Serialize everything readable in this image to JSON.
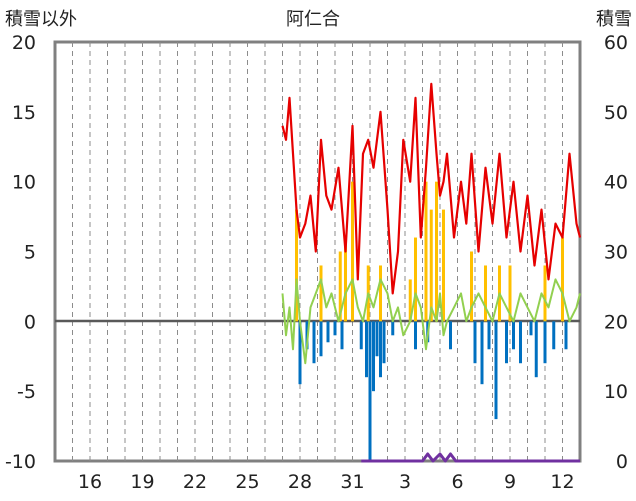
{
  "chart_data": {
    "type": "line",
    "title": "阿仁合",
    "left_axis_title": "積雪以外",
    "right_axis_title": "積雪",
    "left_ylim": [
      -10,
      20
    ],
    "left_ticks": [
      "20",
      "15",
      "10",
      "5",
      "0",
      "-5",
      "-10"
    ],
    "right_ylim": [
      0,
      60
    ],
    "right_ticks": [
      "60",
      "50",
      "40",
      "30",
      "20",
      "10",
      "0"
    ],
    "x_ticks": [
      "16",
      "19",
      "22",
      "25",
      "28",
      "31",
      "3",
      "6",
      "9",
      "12"
    ],
    "x_day_range": [
      14,
      44
    ],
    "grid": "dashed vertical daily lines",
    "colors": {
      "temperature": "#e60000",
      "daily_temp": "#92d050",
      "precipitation": "#ffc000",
      "negative": "#0070c0",
      "snow_depth": "#7030a0",
      "frame": "#808080"
    },
    "series": [
      {
        "key": "temperature",
        "x": [
          27.0,
          27.2,
          27.4,
          27.6,
          27.8,
          28.0,
          28.3,
          28.6,
          28.9,
          29.2,
          29.5,
          29.8,
          30.2,
          30.6,
          31.0,
          31.3,
          31.6,
          31.9,
          32.2,
          32.6,
          33.0,
          33.3,
          33.6,
          33.9,
          34.3,
          34.6,
          34.9,
          35.2,
          35.5,
          35.8,
          36.0,
          36.2,
          36.4,
          36.8,
          37.2,
          37.5,
          37.8,
          38.2,
          38.6,
          39.0,
          39.4,
          39.8,
          40.2,
          40.6,
          41.0,
          41.4,
          41.8,
          42.2,
          42.6,
          43.0,
          43.4,
          43.8,
          44.0
        ],
        "y": [
          14,
          13,
          16,
          12,
          8,
          6,
          7,
          9,
          5,
          13,
          9,
          8,
          11,
          5,
          14,
          3,
          12,
          13,
          11,
          15,
          8,
          2,
          5,
          13,
          10,
          16,
          6,
          11,
          17,
          12,
          9,
          10,
          12,
          6,
          10,
          7,
          12,
          5,
          11,
          7,
          12,
          6,
          10,
          5,
          9,
          4,
          8,
          3,
          7,
          6,
          12,
          7,
          6
        ]
      },
      {
        "key": "daily_temp",
        "x": [
          27.0,
          27.2,
          27.4,
          27.6,
          27.8,
          28.0,
          28.3,
          28.6,
          28.9,
          29.2,
          29.5,
          29.8,
          30.2,
          30.6,
          31.0,
          31.3,
          31.6,
          31.9,
          32.2,
          32.6,
          33.0,
          33.3,
          33.6,
          33.9,
          34.3,
          34.6,
          34.9,
          35.2,
          35.5,
          35.8,
          36.0,
          36.2,
          36.4,
          36.8,
          37.2,
          37.5,
          37.8,
          38.2,
          38.6,
          39.0,
          39.4,
          39.8,
          40.2,
          40.6,
          41.0,
          41.4,
          41.8,
          42.2,
          42.6,
          43.0,
          43.4,
          43.8,
          44.0
        ],
        "y": [
          2,
          -1,
          1,
          -2,
          3,
          0,
          -3,
          1,
          2,
          3,
          1,
          2,
          0,
          2,
          3,
          1,
          0,
          2,
          1,
          3,
          2,
          0,
          1,
          -1,
          0,
          2,
          1,
          -2,
          1,
          0,
          2,
          -1,
          0,
          1,
          2,
          0,
          1,
          2,
          1,
          0,
          2,
          1,
          0,
          2,
          1,
          0,
          2,
          1,
          3,
          2,
          0,
          1,
          2
        ]
      },
      {
        "key": "precipitation",
        "x": [
          27.8,
          29.2,
          30.3,
          30.6,
          31.0,
          31.9,
          32.6,
          34.3,
          34.6,
          35.2,
          35.5,
          35.8,
          36.2,
          37.8,
          38.6,
          39.4,
          40.0,
          42.0,
          43.0
        ],
        "y": [
          8,
          4,
          5,
          6,
          10,
          4,
          4,
          3,
          6,
          10,
          8,
          10,
          8,
          5,
          4,
          4,
          4,
          4,
          6
        ]
      },
      {
        "key": "negative",
        "x": [
          28.0,
          28.4,
          28.8,
          29.2,
          29.6,
          30.0,
          30.4,
          31.5,
          31.8,
          32.0,
          32.2,
          32.4,
          32.6,
          32.8,
          33.3,
          34.6,
          35.3,
          36.6,
          38.0,
          38.4,
          38.8,
          39.2,
          39.8,
          40.2,
          40.6,
          41.2,
          41.5,
          42.0,
          42.5,
          43.2
        ],
        "y": [
          -4.5,
          -2,
          -3,
          -2.5,
          -1.5,
          -1,
          -2,
          -2,
          -4,
          -10,
          -5,
          -2.5,
          -4,
          -3,
          -1,
          -2,
          -1.5,
          -2,
          -3,
          -4.5,
          -2,
          -7,
          -3,
          -2,
          -3,
          -1,
          -4,
          -3,
          -2,
          -2
        ]
      },
      {
        "key": "snow_depth",
        "x": [
          31.5,
          35.0,
          35.3,
          35.6,
          36.0,
          36.3,
          36.6,
          36.9,
          37.2,
          44.0
        ],
        "y": [
          0,
          0,
          1,
          0,
          1,
          0,
          1,
          0,
          0,
          0
        ]
      }
    ]
  }
}
